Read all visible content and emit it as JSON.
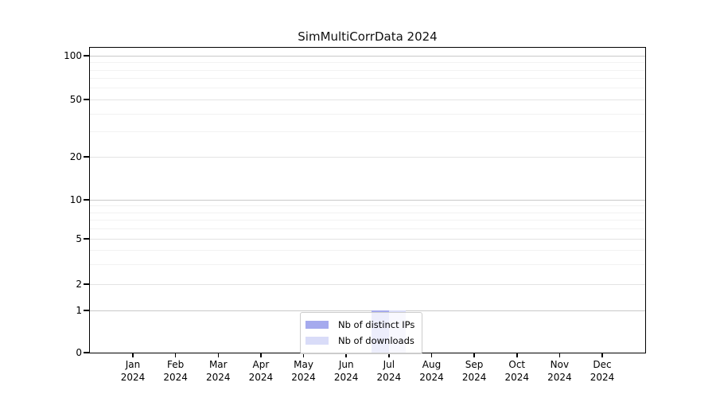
{
  "chart_data": {
    "type": "bar",
    "title": "SimMultiCorrData 2024",
    "xlabel": "",
    "ylabel": "",
    "year": "2024",
    "categories": [
      "Jan 2024",
      "Feb 2024",
      "Mar 2024",
      "Apr 2024",
      "May 2024",
      "Jun 2024",
      "Jul 2024",
      "Aug 2024",
      "Sep 2024",
      "Oct 2024",
      "Nov 2024",
      "Dec 2024"
    ],
    "x_tick_labels": [
      {
        "month": "Jan",
        "year": "2024"
      },
      {
        "month": "Feb",
        "year": "2024"
      },
      {
        "month": "Mar",
        "year": "2024"
      },
      {
        "month": "Apr",
        "year": "2024"
      },
      {
        "month": "May",
        "year": "2024"
      },
      {
        "month": "Jun",
        "year": "2024"
      },
      {
        "month": "Jul",
        "year": "2024"
      },
      {
        "month": "Aug",
        "year": "2024"
      },
      {
        "month": "Sep",
        "year": "2024"
      },
      {
        "month": "Oct",
        "year": "2024"
      },
      {
        "month": "Nov",
        "year": "2024"
      },
      {
        "month": "Dec",
        "year": "2024"
      }
    ],
    "y_tick_labels": [
      "0",
      "1",
      "2",
      "5",
      "10",
      "20",
      "50",
      "100"
    ],
    "y_axis_scale": "log-like (0 baseline, compressed decades)",
    "ylim": [
      0,
      115
    ],
    "grid": "horizontal major and minor gridlines, no vertical gridlines",
    "series": [
      {
        "name": "Nb of distinct IPs",
        "color": "#a5aaee",
        "values": [
          null,
          null,
          null,
          null,
          null,
          null,
          1,
          null,
          null,
          null,
          null,
          null
        ]
      },
      {
        "name": "Nb of downloads",
        "color": "#d9dcf8",
        "values": [
          null,
          null,
          null,
          null,
          null,
          null,
          1,
          null,
          null,
          null,
          null,
          null
        ]
      }
    ],
    "legend": {
      "position": "lower center",
      "entries": [
        {
          "label": "Nb of distinct IPs",
          "color": "#a5aaee"
        },
        {
          "label": "Nb of downloads",
          "color": "#d9dcf8"
        }
      ]
    }
  }
}
